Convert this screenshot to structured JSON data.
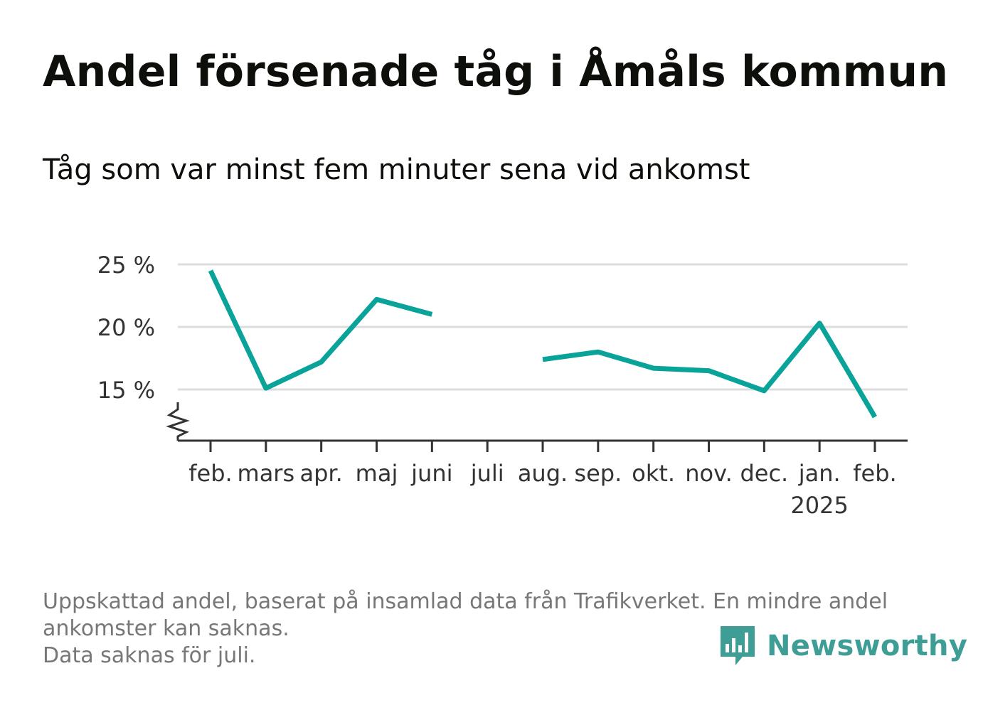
{
  "header": {
    "title": "Andel försenade tåg i Åmåls kommun",
    "subtitle": "Tåg som var minst fem minuter sena vid ankomst"
  },
  "chart_data": {
    "type": "line",
    "categories": [
      "feb.",
      "mars",
      "apr.",
      "maj",
      "juni",
      "juli",
      "aug.",
      "sep.",
      "okt.",
      "nov.",
      "dec.",
      "jan.",
      "feb."
    ],
    "year_label": "2025",
    "series": [
      {
        "color": "#0aa39a",
        "values": [
          24.5,
          15.1,
          17.2,
          22.2,
          21.0,
          null,
          17.4,
          18.0,
          16.7,
          16.5,
          14.9,
          20.3,
          12.8
        ]
      }
    ],
    "y_ticks": [
      15,
      20,
      25
    ],
    "y_tick_labels": [
      "15 %",
      "20 %",
      "25 %"
    ],
    "ylim": [
      11,
      25.5
    ],
    "grid": true,
    "axis_break": true
  },
  "footer": {
    "lines": [
      "Uppskattad andel, baserat på insamlad data från Trafikverket. En mindre andel",
      "ankomster kan saknas.",
      "Data saknas för juli."
    ]
  },
  "brand": {
    "name": "Newsworthy",
    "icon": "bar-chart-speech-bubble-icon",
    "color": "#3e9d95"
  }
}
